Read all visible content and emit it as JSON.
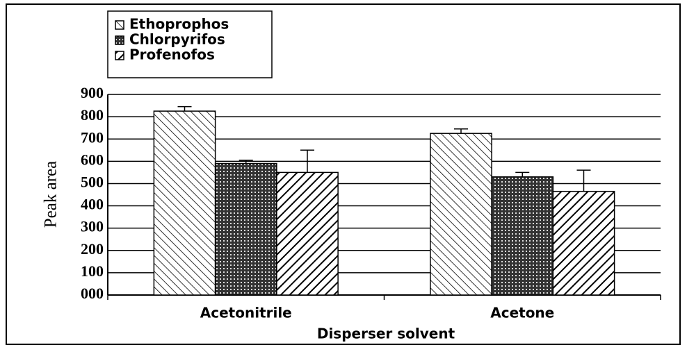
{
  "chart_data": {
    "type": "bar",
    "x_label": "Disperser solvent",
    "y_label": "Peak area",
    "categories": [
      "Acetonitrile",
      "Acetone"
    ],
    "series": [
      {
        "name": "Ethoprophos",
        "color": "#000000",
        "pattern": "backslash",
        "values": [
          825,
          725
        ],
        "errors": [
          20,
          20
        ]
      },
      {
        "name": "Chlorpyrifos",
        "color": "#000000",
        "pattern": "crosshatch",
        "values": [
          590,
          530
        ],
        "errors": [
          15,
          20
        ]
      },
      {
        "name": "Profenofos",
        "color": "#000000",
        "pattern": "slash",
        "values": [
          550,
          465
        ],
        "errors": [
          100,
          95
        ]
      }
    ],
    "ylim": [
      0,
      900
    ],
    "yticks": [
      {
        "value": 0,
        "label": "000"
      },
      100,
      200,
      300,
      400,
      500,
      600,
      700,
      800,
      900
    ],
    "grid": true,
    "legend": "top-left"
  }
}
